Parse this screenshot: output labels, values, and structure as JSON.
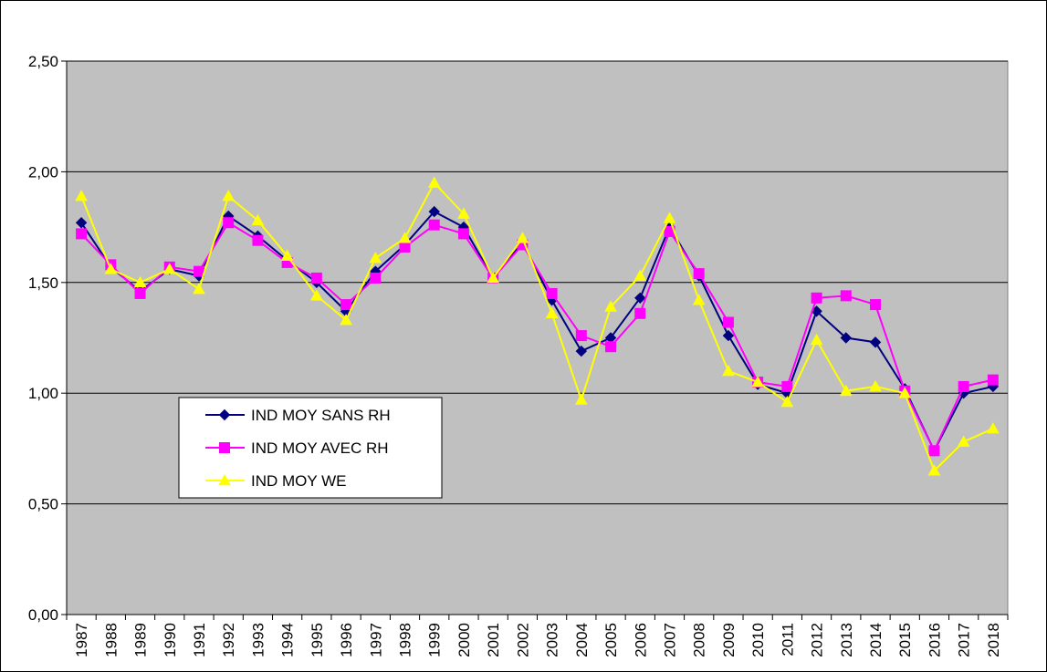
{
  "chart_data": {
    "type": "line",
    "title": "",
    "xlabel": "",
    "ylabel": "",
    "x": [
      "1987",
      "1988",
      "1989",
      "1990",
      "1991",
      "1992",
      "1993",
      "1994",
      "1995",
      "1996",
      "1997",
      "1998",
      "1999",
      "2000",
      "2001",
      "2002",
      "2003",
      "2004",
      "2005",
      "2006",
      "2007",
      "2008",
      "2009",
      "2010",
      "2011",
      "2012",
      "2013",
      "2014",
      "2015",
      "2016",
      "2017",
      "2018"
    ],
    "ylim": [
      0,
      2.5
    ],
    "y_ticks": [
      "0,00",
      "0,50",
      "1,00",
      "1,50",
      "2,00",
      "2,50"
    ],
    "grid": true,
    "legend_position": "lower-left",
    "series": [
      {
        "name": "IND MOY SANS RH",
        "color": "#000080",
        "marker": "diamond",
        "values": [
          1.77,
          1.57,
          1.46,
          1.56,
          1.53,
          1.8,
          1.71,
          1.6,
          1.5,
          1.37,
          1.55,
          1.67,
          1.82,
          1.75,
          1.52,
          1.68,
          1.42,
          1.19,
          1.25,
          1.43,
          1.75,
          1.53,
          1.26,
          1.04,
          1.0,
          1.37,
          1.25,
          1.23,
          1.02,
          0.74,
          1.0,
          1.03
        ]
      },
      {
        "name": "IND MOY AVEC RH",
        "color": "#FF00FF",
        "marker": "square",
        "values": [
          1.72,
          1.58,
          1.45,
          1.57,
          1.55,
          1.77,
          1.69,
          1.59,
          1.52,
          1.4,
          1.52,
          1.66,
          1.76,
          1.72,
          1.52,
          1.67,
          1.45,
          1.26,
          1.21,
          1.36,
          1.73,
          1.54,
          1.32,
          1.05,
          1.03,
          1.43,
          1.44,
          1.4,
          1.01,
          0.74,
          1.03,
          1.06
        ]
      },
      {
        "name": "IND MOY WE",
        "color": "#FFFF00",
        "marker": "triangle",
        "values": [
          1.89,
          1.56,
          1.5,
          1.56,
          1.47,
          1.89,
          1.78,
          1.62,
          1.44,
          1.33,
          1.61,
          1.7,
          1.95,
          1.81,
          1.52,
          1.7,
          1.36,
          0.97,
          1.39,
          1.53,
          1.79,
          1.42,
          1.1,
          1.05,
          0.96,
          1.24,
          1.01,
          1.03,
          1.0,
          0.65,
          0.78,
          0.84
        ]
      }
    ],
    "colors": {
      "plot_background": "#C0C0C0",
      "gridline": "#000000"
    }
  }
}
